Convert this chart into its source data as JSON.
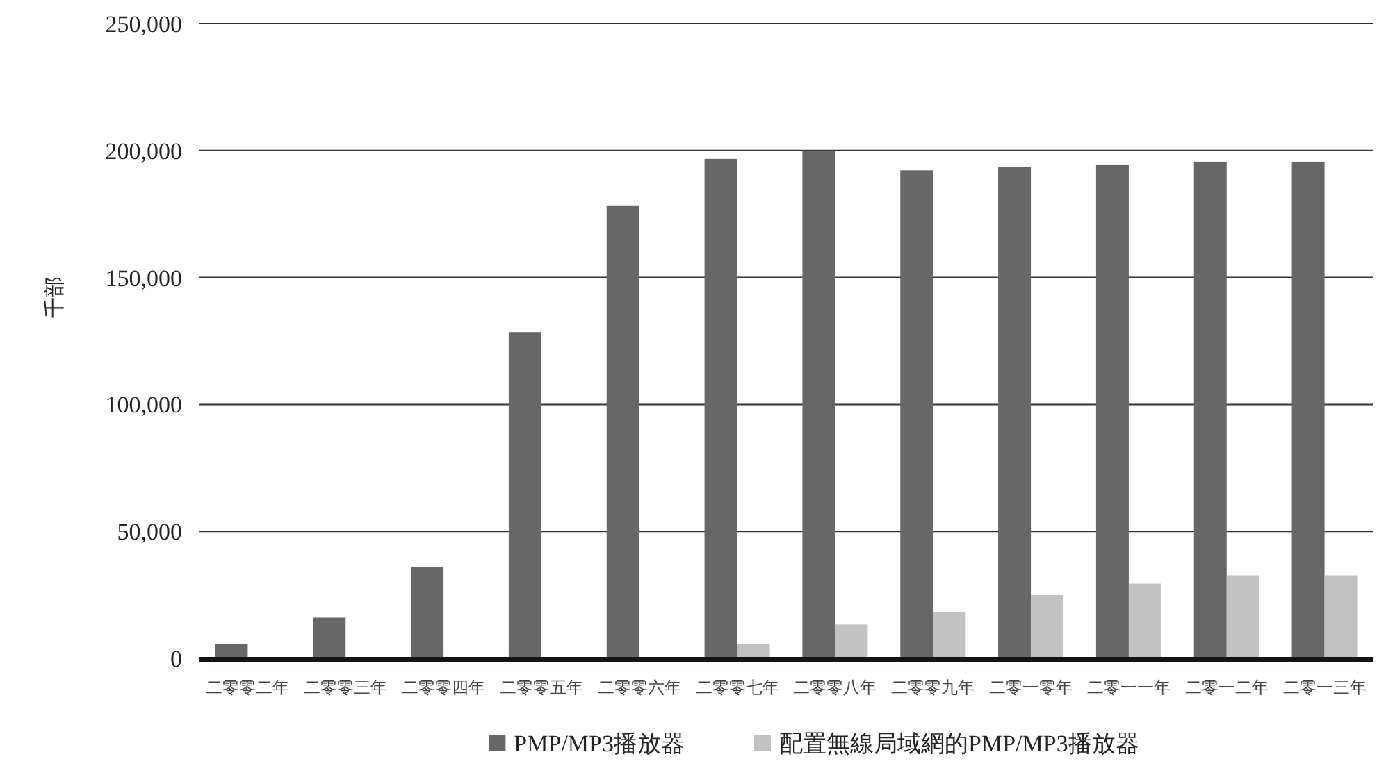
{
  "chart_data": {
    "type": "bar",
    "ylabel": "千部",
    "categories": [
      "二零零二年",
      "二零零三年",
      "二零零四年",
      "二零零五年",
      "二零零六年",
      "二零零七年",
      "二零零八年",
      "二零零九年",
      "二零一零年",
      "二零一一年",
      "二零一二年",
      "二零一三年"
    ],
    "series": [
      {
        "name": "PMP/MP3播放器",
        "color": "#676767",
        "values": [
          5500,
          16000,
          36000,
          128500,
          178400,
          196700,
          200000,
          192200,
          193400,
          194500,
          195600,
          195600
        ]
      },
      {
        "name": "配置無線局域網的PMP/MP3播放器",
        "color": "#c1c2c1",
        "values": [
          null,
          null,
          null,
          null,
          null,
          5500,
          13300,
          18300,
          24900,
          29400,
          32700,
          32700
        ]
      }
    ],
    "ylim": [
      0,
      250000
    ],
    "yticks": [
      {
        "value": 0,
        "label": "0"
      },
      {
        "value": 50000,
        "label": "50,000"
      },
      {
        "value": 100000,
        "label": "100,000"
      },
      {
        "value": 150000,
        "label": "150,000"
      },
      {
        "value": 200000,
        "label": "200,000"
      },
      {
        "value": 250000,
        "label": "250,000"
      }
    ],
    "grid": "y",
    "legend": "bottom"
  }
}
